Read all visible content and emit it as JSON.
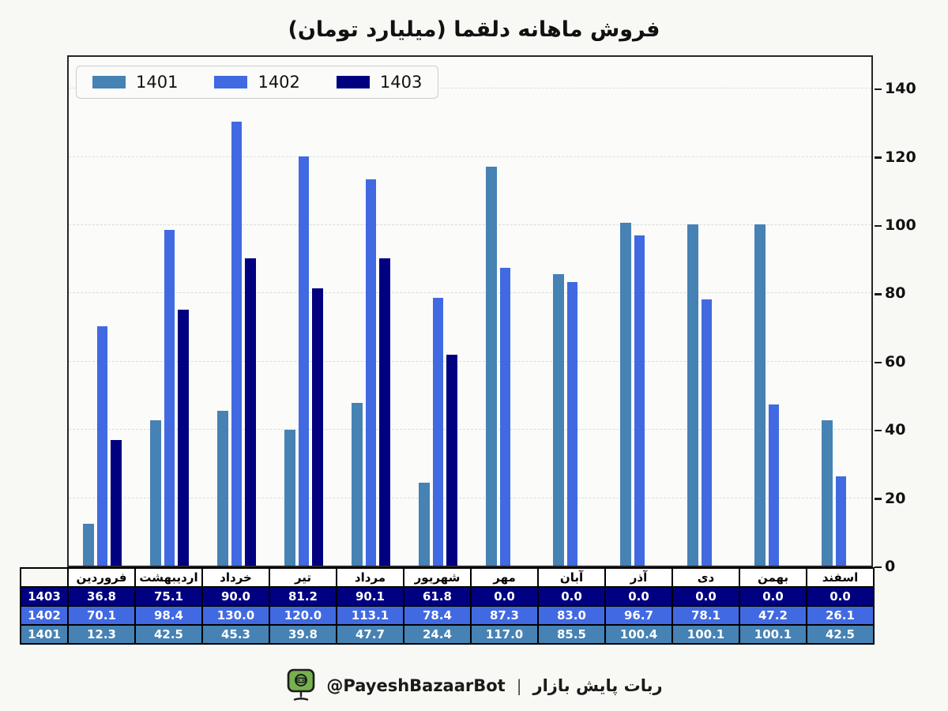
{
  "title": "فروش ماهانه دلقما (میلیارد تومان)",
  "colors": {
    "series_1401": "#4682B4",
    "series_1402": "#4169E1",
    "series_1403": "#000080",
    "figure_bg": "#f8f8f5",
    "plot_bg": "#fbfbf9",
    "grid": "#dcdcdc",
    "icon_green": "#77b04e"
  },
  "chart_data": {
    "type": "bar",
    "title": "فروش ماهانه دلقما (میلیارد تومان)",
    "xlabel": "",
    "ylabel": "",
    "categories": [
      "فروردین",
      "اردیبهشت",
      "خرداد",
      "تیر",
      "مرداد",
      "شهریور",
      "مهر",
      "آبان",
      "آذر",
      "دی",
      "بهمن",
      "اسفند"
    ],
    "series": [
      {
        "name": "1401",
        "color": "#4682B4",
        "values": [
          12.3,
          42.5,
          45.3,
          39.8,
          47.7,
          24.4,
          117.0,
          85.5,
          100.4,
          100.1,
          100.1,
          42.5
        ]
      },
      {
        "name": "1402",
        "color": "#4169E1",
        "values": [
          70.1,
          98.4,
          130.0,
          120.0,
          113.1,
          78.4,
          87.3,
          83.0,
          96.7,
          78.1,
          47.2,
          26.1
        ]
      },
      {
        "name": "1403",
        "color": "#000080",
        "values": [
          36.8,
          75.1,
          90.0,
          81.2,
          90.1,
          61.8,
          0.0,
          0.0,
          0.0,
          0.0,
          0.0,
          0.0
        ]
      }
    ],
    "ylim": [
      0,
      150
    ],
    "yticks": [
      0,
      20,
      40,
      60,
      80,
      100,
      120,
      140
    ],
    "yaxis_side": "right",
    "grid": true,
    "legend_position": "top-left"
  },
  "table": {
    "columns": [
      "فروردین",
      "اردیبهشت",
      "خرداد",
      "تیر",
      "مرداد",
      "شهریور",
      "مهر",
      "آبان",
      "آذر",
      "دی",
      "بهمن",
      "اسفند"
    ],
    "rows": [
      {
        "label": "1403",
        "color": "#000080",
        "values": [
          "36.8",
          "75.1",
          "90.0",
          "81.2",
          "90.1",
          "61.8",
          "0.0",
          "0.0",
          "0.0",
          "0.0",
          "0.0",
          "0.0"
        ]
      },
      {
        "label": "1402",
        "color": "#4169E1",
        "values": [
          "70.1",
          "98.4",
          "130.0",
          "120.0",
          "113.1",
          "78.4",
          "87.3",
          "83.0",
          "96.7",
          "78.1",
          "47.2",
          "26.1"
        ]
      },
      {
        "label": "1401",
        "color": "#4682B4",
        "values": [
          "12.3",
          "42.5",
          "45.3",
          "39.8",
          "47.7",
          "24.4",
          "117.0",
          "85.5",
          "100.4",
          "100.1",
          "100.1",
          "42.5"
        ]
      }
    ]
  },
  "footer": {
    "icon": "robot-monitor-icon",
    "icon_color": "#77b04e",
    "handle": "@PayeshBazaarBot",
    "separator": "|",
    "label": "ربات پایش بازار"
  }
}
